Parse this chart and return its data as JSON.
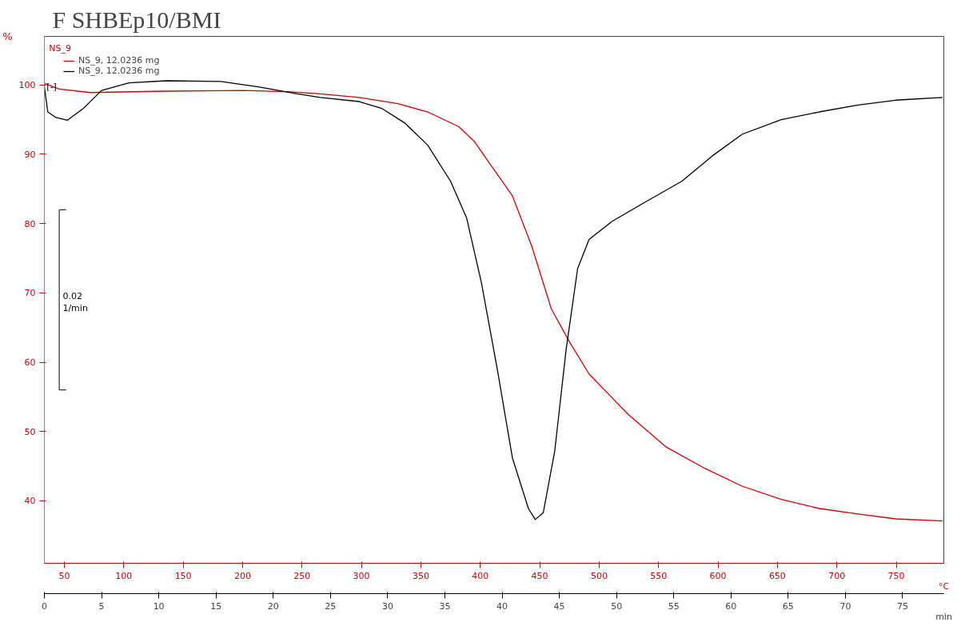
{
  "chart_data": {
    "type": "line",
    "title": "F    SHBEp10/BMI",
    "xlabel": "min",
    "x2label": "°C",
    "ylabel": "%",
    "xlim": [
      0,
      78.6
    ],
    "xticks": [
      0,
      5,
      10,
      15,
      20,
      25,
      30,
      35,
      40,
      45,
      50,
      55,
      60,
      65,
      70,
      75
    ],
    "x2lim": [
      33.2,
      790
    ],
    "x2ticks": [
      50,
      100,
      150,
      200,
      250,
      300,
      350,
      400,
      450,
      500,
      550,
      600,
      650,
      700,
      750
    ],
    "ylim": [
      31,
      107
    ],
    "yticks": [
      40,
      50,
      60,
      70,
      80,
      90,
      100
    ],
    "grid": false,
    "legend": "top left",
    "line_style": "solid",
    "marker": "none",
    "annotations": [
      "NS_9",
      "[-]",
      "0.02 1/min"
    ],
    "series": [
      {
        "name": "NS_9, 12.0236 mg",
        "color": "#cc0000",
        "x": [
          0,
          1.3,
          4,
          10.7,
          17.4,
          21.5,
          24.1,
          27.5,
          30.9,
          33.5,
          36.2,
          37.6,
          38.9,
          40.9,
          42.6,
          44.3,
          45.9,
          47.6,
          51.0,
          54.3,
          57.7,
          61.0,
          64.4,
          67.7,
          71.1,
          74.4,
          78.5
        ],
        "values": [
          100.2,
          99.4,
          98.9,
          99.1,
          99.2,
          99.0,
          98.7,
          98.2,
          97.3,
          96.1,
          94.0,
          91.8,
          88.7,
          84.0,
          76.7,
          67.7,
          62.9,
          58.3,
          52.5,
          47.8,
          44.7,
          42.1,
          40.2,
          38.9,
          38.1,
          37.4,
          37.1
        ]
      },
      {
        "name": "NS_9, 12.0236 mg",
        "color": "#000000",
        "x": [
          0,
          0.3,
          1.0,
          2.0,
          3.4,
          5.0,
          7.4,
          10.7,
          15.4,
          18.8,
          22.1,
          24.1,
          27.5,
          29.5,
          31.5,
          33.5,
          35.5,
          36.9,
          38.2,
          39.6,
          40.9,
          42.3,
          42.9,
          43.6,
          44.6,
          45.6,
          46.6,
          47.6,
          49.6,
          52.3,
          55.7,
          58.4,
          61.0,
          64.4,
          67.7,
          71.1,
          74.4,
          78.5
        ],
        "values": [
          99.7,
          96.1,
          95.3,
          94.9,
          96.6,
          99.2,
          100.3,
          100.6,
          100.5,
          99.7,
          98.7,
          98.2,
          97.6,
          96.6,
          94.5,
          91.3,
          86.1,
          80.8,
          71.4,
          58.8,
          46.2,
          38.9,
          37.3,
          38.3,
          47.2,
          61.9,
          73.5,
          77.7,
          80.3,
          82.9,
          86.1,
          89.8,
          92.9,
          95.0,
          96.1,
          97.1,
          97.8,
          98.2
        ]
      }
    ]
  }
}
